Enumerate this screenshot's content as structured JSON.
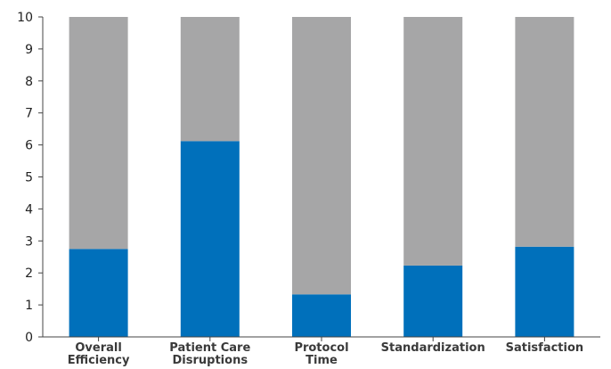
{
  "chart_data": {
    "type": "bar",
    "stacked": true,
    "categories": [
      [
        "Overall",
        "Efficiency"
      ],
      [
        "Patient Care",
        "Disruptions"
      ],
      [
        "Protocol",
        "Time"
      ],
      [
        "Standardization"
      ],
      [
        "Satisfaction"
      ]
    ],
    "series": [
      {
        "values": [
          2.75,
          6.12,
          1.33,
          2.23,
          2.82
        ],
        "color": "#0070BB"
      },
      {
        "values": [
          7.25,
          3.88,
          8.67,
          7.77,
          7.18
        ],
        "color": "#A6A6A7"
      }
    ],
    "ylim": [
      0,
      10
    ],
    "yticks": [
      "0",
      "1",
      "2",
      "3",
      "4",
      "5",
      "6",
      "7",
      "8",
      "9",
      "10"
    ],
    "grid": false,
    "legend": "none"
  }
}
